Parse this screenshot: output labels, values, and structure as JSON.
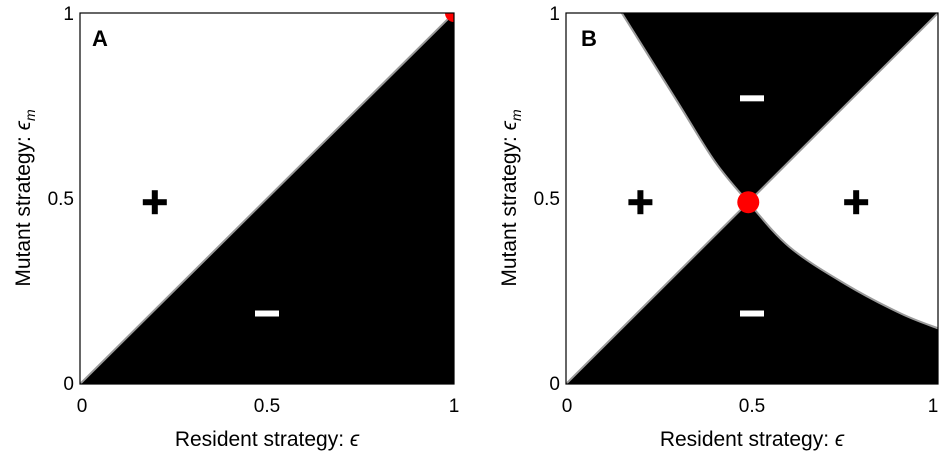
{
  "chart_data": [
    {
      "type": "heatmap",
      "panel_label": "A",
      "xlabel": "Resident  strategy: ",
      "xlabel_symbol": "ϵ",
      "ylabel": "Mutant  strategy: ",
      "ylabel_symbol": "ϵ",
      "ylabel_subscript": "m",
      "xlim": [
        0,
        1
      ],
      "ylim": [
        0,
        1
      ],
      "x_ticks": [
        "0",
        "0.5",
        "1"
      ],
      "y_ticks": [
        "0",
        "0.5",
        "1"
      ],
      "region_colors": {
        "plus": "#ffffff",
        "minus": "#000000"
      },
      "boundaries": [
        {
          "shape": "line",
          "points": [
            [
              0,
              0
            ],
            [
              1,
              1
            ]
          ]
        }
      ],
      "region_signs": [
        {
          "sign": "+",
          "x": 0.2,
          "y": 0.49,
          "color": "#000000"
        },
        {
          "sign": "–",
          "x": 0.5,
          "y": 0.19,
          "color": "#ffffff"
        }
      ],
      "fixed_point": {
        "x": 1.0,
        "y": 1.0,
        "color": "#ff0000"
      }
    },
    {
      "type": "heatmap",
      "panel_label": "B",
      "xlabel": "Resident  strategy: ",
      "xlabel_symbol": "ϵ",
      "ylabel": "Mutant  strategy: ",
      "ylabel_symbol": "ϵ",
      "ylabel_subscript": "m",
      "xlim": [
        0,
        1
      ],
      "ylim": [
        0,
        1
      ],
      "x_ticks": [
        "0",
        "0.5",
        "1"
      ],
      "y_ticks": [
        "0",
        "0.5",
        "1"
      ],
      "region_colors": {
        "plus": "#ffffff",
        "minus": "#000000"
      },
      "boundaries": [
        {
          "shape": "line",
          "points": [
            [
              0,
              0
            ],
            [
              1,
              1
            ]
          ]
        },
        {
          "shape": "curve",
          "points": [
            [
              0.15,
              1.0
            ],
            [
              0.3,
              0.76
            ],
            [
              0.4,
              0.6
            ],
            [
              0.49,
              0.49
            ],
            [
              0.6,
              0.37
            ],
            [
              0.75,
              0.27
            ],
            [
              0.9,
              0.19
            ],
            [
              1.0,
              0.15
            ]
          ]
        }
      ],
      "region_signs": [
        {
          "sign": "+",
          "x": 0.2,
          "y": 0.49,
          "color": "#000000"
        },
        {
          "sign": "+",
          "x": 0.78,
          "y": 0.49,
          "color": "#000000"
        },
        {
          "sign": "–",
          "x": 0.5,
          "y": 0.77,
          "color": "#ffffff"
        },
        {
          "sign": "–",
          "x": 0.5,
          "y": 0.19,
          "color": "#ffffff"
        }
      ],
      "fixed_point": {
        "x": 0.49,
        "y": 0.49,
        "color": "#ff0000"
      }
    }
  ]
}
